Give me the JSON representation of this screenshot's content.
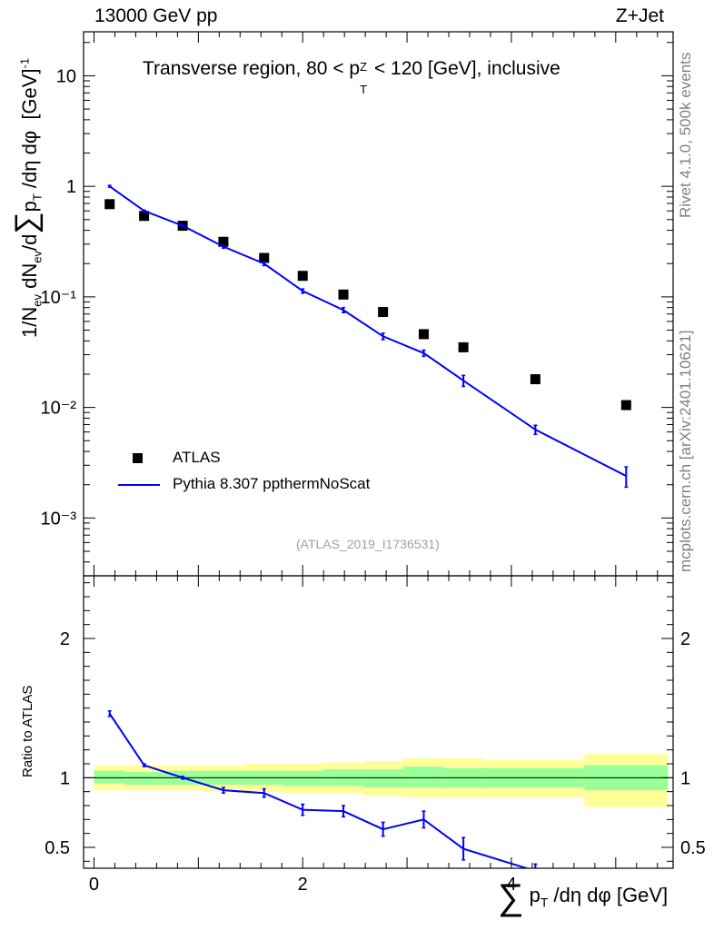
{
  "header": {
    "left": "13000 GeV pp",
    "right": "Z+Jet"
  },
  "title": {
    "pre": "Transverse region, 80 < p",
    "sub": "T",
    "sup": "Z",
    "post": " < 120 [GeV], inclusive"
  },
  "side_labels": {
    "rivet": "Rivet 4.1.0,  500k events",
    "mcplots": "mcplots.cern.ch [arXiv:2401.10621]"
  },
  "watermark": "(ATLAS_2019_I1736531)",
  "chart_data": [
    {
      "panel": "main",
      "type": "scatter+line",
      "ylabel": "1/N_ev dN_ev/d∑p_T/dη dφ [GeV]^-1",
      "yscale": "log",
      "ylim": [
        0.0003,
        25
      ],
      "xlim": [
        -0.1,
        5.55
      ],
      "yticks": [
        "10⁻³",
        "10⁻²",
        "10⁻¹",
        "1",
        "10"
      ],
      "yticks_values": [
        0.001,
        0.01,
        0.1,
        1,
        10
      ],
      "legend": [
        {
          "label": "ATLAS",
          "marker": "square"
        },
        {
          "label": "Pythia 8.307 ppthermNoScat",
          "marker": "line"
        }
      ],
      "series": [
        {
          "name": "ATLAS",
          "color": "#000000",
          "x": [
            0.15,
            0.48,
            0.85,
            1.24,
            1.63,
            2.0,
            2.39,
            2.77,
            3.16,
            3.54,
            4.23,
            5.1
          ],
          "y": [
            0.69,
            0.54,
            0.44,
            0.315,
            0.225,
            0.155,
            0.105,
            0.073,
            0.046,
            0.035,
            0.018,
            0.0105
          ]
        },
        {
          "name": "Pythia 8.307 ppthermNoScat",
          "color": "#0000ff",
          "x": [
            0.15,
            0.48,
            0.85,
            1.24,
            1.63,
            2.0,
            2.39,
            2.77,
            3.16,
            3.54,
            4.23,
            5.1
          ],
          "y": [
            1.0,
            0.6,
            0.44,
            0.285,
            0.2,
            0.113,
            0.076,
            0.044,
            0.031,
            0.0175,
            0.0063,
            0.0024
          ],
          "yerr": [
            0.02,
            0.01,
            0.008,
            0.009,
            0.008,
            0.005,
            0.004,
            0.003,
            0.002,
            0.002,
            0.0006,
            0.0005
          ]
        }
      ]
    },
    {
      "panel": "ratio",
      "type": "line+band",
      "ylabel": "Ratio to ATLAS",
      "xlabel": "∑p_T/dη dφ [GeV]",
      "ylim": [
        0.35,
        2.45
      ],
      "xlim": [
        -0.1,
        5.55
      ],
      "xticks": [
        "0",
        "2",
        "4"
      ],
      "xticks_values": [
        0,
        2,
        4
      ],
      "yticks": [
        "0.5",
        "1",
        "2"
      ],
      "yticks_values": [
        0.5,
        1,
        2
      ],
      "reference_line": 1,
      "bands": {
        "edges": [
          0,
          0.3,
          0.67,
          1.04,
          1.44,
          1.82,
          2.19,
          2.58,
          2.96,
          3.35,
          3.73,
          4.7,
          5.5
        ],
        "green_low": [
          0.96,
          0.95,
          0.95,
          0.95,
          0.95,
          0.94,
          0.94,
          0.93,
          0.93,
          0.93,
          0.93,
          0.91
        ],
        "green_high": [
          1.05,
          1.04,
          1.05,
          1.05,
          1.05,
          1.05,
          1.06,
          1.06,
          1.08,
          1.07,
          1.07,
          1.09
        ],
        "yellow_low": [
          0.91,
          0.91,
          0.91,
          0.9,
          0.9,
          0.89,
          0.89,
          0.87,
          0.86,
          0.86,
          0.86,
          0.79
        ],
        "yellow_high": [
          1.09,
          1.09,
          1.09,
          1.09,
          1.1,
          1.1,
          1.11,
          1.12,
          1.14,
          1.14,
          1.13,
          1.17
        ],
        "green_color": "#99ff99",
        "yellow_color": "#ffff99"
      },
      "series": [
        {
          "name": "Pythia 8.307 ppthermNoScat / ATLAS",
          "color": "#0000ff",
          "x": [
            0.15,
            0.48,
            0.85,
            1.24,
            1.63,
            2.0,
            2.39,
            2.77,
            3.16,
            3.54,
            4.23
          ],
          "y": [
            1.46,
            1.09,
            1.0,
            0.91,
            0.89,
            0.77,
            0.76,
            0.63,
            0.7,
            0.49,
            0.33
          ],
          "yerr": [
            0.02,
            0.01,
            0.01,
            0.02,
            0.03,
            0.04,
            0.04,
            0.05,
            0.06,
            0.08,
            0.05
          ]
        }
      ]
    }
  ]
}
